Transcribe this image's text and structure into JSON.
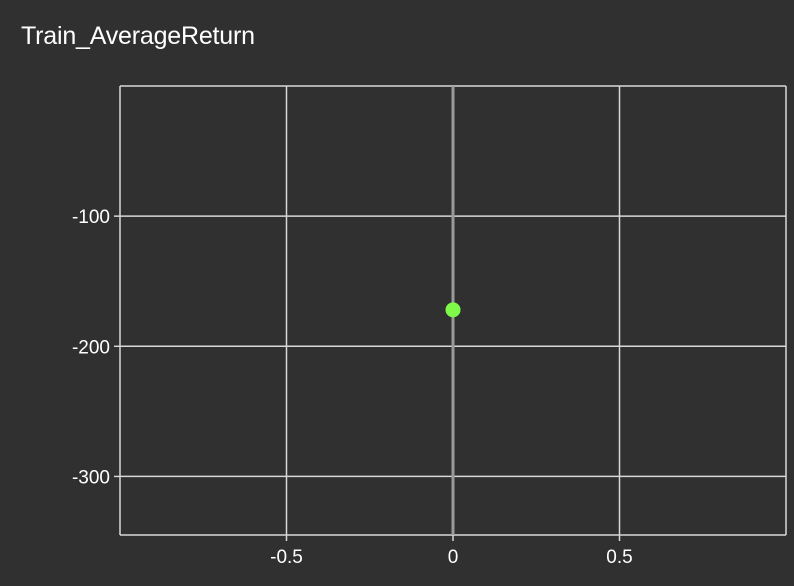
{
  "chart_data": {
    "type": "scatter",
    "title": "Train_AverageReturn",
    "xlabel": "",
    "ylabel": "",
    "xlim": [
      -1,
      1
    ],
    "ylim": [
      -345,
      0
    ],
    "x_ticks": [
      -0.5,
      0,
      0.5
    ],
    "x_tick_labels": [
      "-0.5",
      "0",
      "0.5"
    ],
    "y_ticks": [
      -100,
      -200,
      -300
    ],
    "y_tick_labels": [
      "-100",
      "-200",
      "-300"
    ],
    "grid": true,
    "legend": "none",
    "series": [
      {
        "color": "#7ef94a",
        "points": [
          {
            "x": 0,
            "y": -172
          }
        ]
      }
    ],
    "colors": {
      "background": "#303030",
      "grid": "#d8d8d8",
      "zero_line": "#9a9a9a",
      "text": "#ffffff"
    }
  }
}
